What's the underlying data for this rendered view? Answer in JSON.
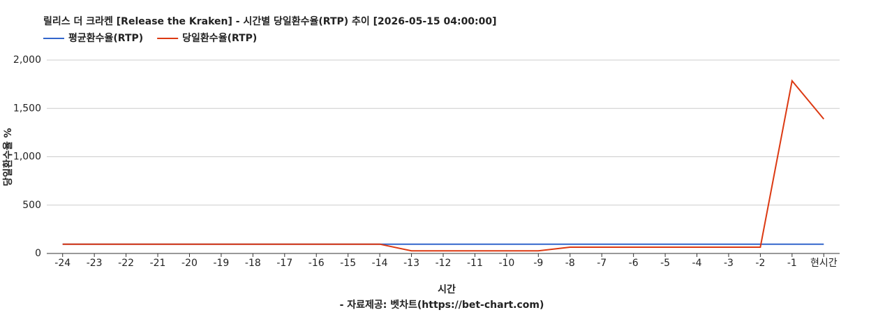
{
  "chart_data": {
    "type": "line",
    "title": "릴리스 더 크라켄 [Release the Kraken] - 시간별 당일환수율(RTP) 추이 [2026-05-15 04:00:00]",
    "x_label": "시간",
    "y_label": "당일환수율 %",
    "source": "- 자료제공: 벳차트(https://bet-chart.com)",
    "categories": [
      "-24",
      "-23",
      "-22",
      "-21",
      "-20",
      "-19",
      "-18",
      "-17",
      "-16",
      "-15",
      "-14",
      "-13",
      "-12",
      "-11",
      "-10",
      "-9",
      "-8",
      "-7",
      "-6",
      "-5",
      "-4",
      "-3",
      "-2",
      "-1",
      "현시간"
    ],
    "series": [
      {
        "name": "평균환수율(RTP)",
        "color": "#3366cc",
        "values": [
          96,
          96,
          96,
          96,
          96,
          96,
          96,
          96,
          96,
          96,
          96,
          96,
          96,
          96,
          96,
          96,
          96,
          96,
          96,
          96,
          96,
          96,
          96,
          96,
          96
        ]
      },
      {
        "name": "당일환수율(RTP)",
        "color": "#dc3912",
        "values": [
          96,
          96,
          96,
          96,
          96,
          96,
          96,
          96,
          96,
          96,
          96,
          27,
          27,
          27,
          27,
          27,
          65,
          65,
          65,
          65,
          65,
          65,
          65,
          1785,
          1390
        ]
      }
    ],
    "ylim": [
      0,
      2000
    ],
    "yticks": [
      0,
      500,
      {
        "value": 1000,
        "label": "1,000"
      },
      {
        "value": 1500,
        "label": "1,500"
      },
      {
        "value": 2000,
        "label": "2,000"
      }
    ],
    "grid": true,
    "legend": "top"
  }
}
